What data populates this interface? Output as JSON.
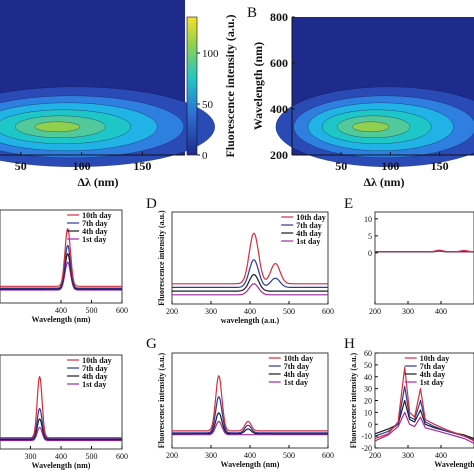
{
  "chart_data": [
    {
      "panel": "A",
      "panel_label": "",
      "type": "heatmap",
      "xlabel": "Δλ (nm)",
      "ylabel": "",
      "xlim": [
        0,
        185
      ],
      "x_ticks": [
        "50",
        "100",
        "150"
      ],
      "peak": {
        "x": 80,
        "y": 340
      },
      "colorbar": {
        "label": "Fluorescence intensity (a.u.)",
        "ticks": [
          "0",
          "50",
          "100"
        ],
        "range": [
          0,
          135
        ],
        "colors": [
          "#1e2a8c",
          "#2f6fd6",
          "#1fc6c8",
          "#8fd14f",
          "#f5e02a"
        ]
      }
    },
    {
      "panel": "B",
      "panel_label": "B",
      "type": "heatmap",
      "xlabel": "Δλ (nm)",
      "ylabel": "Wavelength (nm)",
      "xlim": [
        0,
        185
      ],
      "ylim": [
        200,
        800
      ],
      "x_ticks": [
        "50",
        "100",
        "150"
      ],
      "y_ticks": [
        "200",
        "400",
        "600",
        "800"
      ],
      "peak": {
        "x": 80,
        "y": 340
      }
    },
    {
      "panel": "C",
      "panel_label": "",
      "type": "line",
      "xlabel": "Wavelength (nm)",
      "ylabel": "",
      "xlim": [
        200,
        600
      ],
      "x_ticks": [
        "400",
        "500",
        "600"
      ],
      "legend": [
        "10th day",
        "7th day",
        "4th day",
        "1st day"
      ],
      "series": [
        {
          "name": "10th day",
          "color": "#d42e3e",
          "baseline": 0.18,
          "peaks": [
            {
              "x": 422,
              "h": 0.62,
              "w": 9
            }
          ]
        },
        {
          "name": "7th day",
          "color": "#2b3a9a",
          "baseline": 0.16,
          "peaks": [
            {
              "x": 422,
              "h": 0.46,
              "w": 9
            }
          ]
        },
        {
          "name": "4th day",
          "color": "#1c1c1c",
          "baseline": 0.15,
          "peaks": [
            {
              "x": 422,
              "h": 0.38,
              "w": 9
            }
          ]
        },
        {
          "name": "1st day",
          "color": "#a02aa8",
          "baseline": 0.14,
          "peaks": [
            {
              "x": 422,
              "h": 0.3,
              "w": 9
            }
          ]
        }
      ]
    },
    {
      "panel": "D",
      "panel_label": "D",
      "type": "line",
      "xlabel": "wavelength (a.u.)",
      "ylabel": "Fluorescence intensity (a.u.)",
      "xlim": [
        200,
        600
      ],
      "x_ticks": [
        "200",
        "300",
        "400",
        "500",
        "600"
      ],
      "legend": [
        "10th day",
        "7th day",
        "4th day",
        "1st day"
      ],
      "series": [
        {
          "name": "10th day",
          "color": "#d42e3e",
          "baseline": 0.22,
          "peaks": [
            {
              "x": 410,
              "h": 0.55,
              "w": 12
            },
            {
              "x": 465,
              "h": 0.22,
              "w": 12
            }
          ]
        },
        {
          "name": "7th day",
          "color": "#2b3a9a",
          "baseline": 0.18,
          "peaks": [
            {
              "x": 410,
              "h": 0.3,
              "w": 12
            },
            {
              "x": 465,
              "h": 0.1,
              "w": 12
            }
          ]
        },
        {
          "name": "4th day",
          "color": "#1c1c1c",
          "baseline": 0.14,
          "peaks": [
            {
              "x": 410,
              "h": 0.18,
              "w": 12
            }
          ]
        },
        {
          "name": "1st day",
          "color": "#a02aa8",
          "baseline": 0.1,
          "peaks": [
            {
              "x": 410,
              "h": 0.12,
              "w": 12
            }
          ]
        }
      ]
    },
    {
      "panel": "E",
      "panel_label": "E",
      "type": "line",
      "xlabel": "",
      "ylabel": "",
      "xlim": [
        200,
        500
      ],
      "x_ticks": [
        "200",
        "300",
        "400"
      ],
      "y_ticks": [
        "0",
        "5",
        "10"
      ],
      "ylim": [
        -15,
        12
      ],
      "series": [
        {
          "name": "10th day",
          "color": "#d42e3e",
          "baseline": 0.35,
          "peaks": [
            {
              "x": 395,
              "h": 0.45,
              "w": 10
            },
            {
              "x": 470,
              "h": 0.35,
              "w": 10
            }
          ]
        },
        {
          "name": "7th day",
          "color": "#2b3a9a",
          "baseline": 0.32,
          "peaks": [
            {
              "x": 395,
              "h": 0.38,
              "w": 10
            },
            {
              "x": 470,
              "h": 0.28,
              "w": 10
            }
          ]
        },
        {
          "name": "4th day",
          "color": "#1c1c1c",
          "baseline": 0.3,
          "peaks": [
            {
              "x": 395,
              "h": 0.3,
              "w": 10
            },
            {
              "x": 470,
              "h": 0.22,
              "w": 10
            }
          ]
        },
        {
          "name": "1st day",
          "color": "#a02aa8",
          "baseline": 0.28,
          "peaks": [
            {
              "x": 395,
              "h": 0.25,
              "w": 10
            }
          ]
        }
      ]
    },
    {
      "panel": "F",
      "panel_label": "",
      "type": "line",
      "xlabel": "Wavelength (nm)",
      "ylabel": "",
      "xlim": [
        200,
        600
      ],
      "x_ticks": [
        "300",
        "400",
        "500",
        "600"
      ],
      "legend": [
        "10th day",
        "7th day",
        "4th day",
        "1st day"
      ],
      "series": [
        {
          "name": "10th day",
          "color": "#d42e3e",
          "baseline": 0.12,
          "peaks": [
            {
              "x": 330,
              "h": 0.65,
              "w": 8
            }
          ]
        },
        {
          "name": "7th day",
          "color": "#2b3a9a",
          "baseline": 0.11,
          "peaks": [
            {
              "x": 330,
              "h": 0.32,
              "w": 8
            }
          ]
        },
        {
          "name": "4th day",
          "color": "#1c1c1c",
          "baseline": 0.1,
          "peaks": [
            {
              "x": 330,
              "h": 0.22,
              "w": 8
            }
          ]
        },
        {
          "name": "1st day",
          "color": "#a02aa8",
          "baseline": 0.09,
          "peaks": [
            {
              "x": 330,
              "h": 0.14,
              "w": 8
            }
          ]
        }
      ]
    },
    {
      "panel": "G",
      "panel_label": "G",
      "type": "line",
      "xlabel": "Wavelength (nm)",
      "ylabel": "Fluorescence intensity (a.u.)",
      "xlim": [
        200,
        600
      ],
      "x_ticks": [
        "200",
        "300",
        "400",
        "500",
        "600"
      ],
      "legend": [
        "10th day",
        "7th day",
        "4th day",
        "1st day"
      ],
      "series": [
        {
          "name": "10th day",
          "color": "#d42e3e",
          "baseline": 0.18,
          "peaks": [
            {
              "x": 320,
              "h": 0.58,
              "w": 8
            },
            {
              "x": 395,
              "h": 0.1,
              "w": 8
            }
          ]
        },
        {
          "name": "7th day",
          "color": "#2b3a9a",
          "baseline": 0.16,
          "peaks": [
            {
              "x": 320,
              "h": 0.38,
              "w": 8
            },
            {
              "x": 395,
              "h": 0.08,
              "w": 8
            }
          ]
        },
        {
          "name": "4th day",
          "color": "#1c1c1c",
          "baseline": 0.15,
          "peaks": [
            {
              "x": 320,
              "h": 0.22,
              "w": 8
            },
            {
              "x": 395,
              "h": 0.05,
              "w": 8
            }
          ]
        },
        {
          "name": "1st day",
          "color": "#a02aa8",
          "baseline": 0.14,
          "peaks": [
            {
              "x": 320,
              "h": 0.14,
              "w": 8
            }
          ]
        }
      ]
    },
    {
      "panel": "H",
      "panel_label": "H",
      "type": "line",
      "xlabel": "Wavelength",
      "ylabel": "Fluorescence intensity (a.u.)",
      "xlim": [
        200,
        500
      ],
      "x_ticks": [
        "200",
        "300",
        "400"
      ],
      "y_ticks": [
        "-20",
        "-10",
        "0",
        "10",
        "20",
        "30",
        "40",
        "50",
        "60"
      ],
      "ylim": [
        -20,
        60
      ],
      "legend": [
        "10th day",
        "7th day",
        "4th day",
        "1st day"
      ],
      "series": [
        {
          "name": "10th day",
          "color": "#d42e3e",
          "values": [
            [
              200,
              -12
            ],
            [
              240,
              -8
            ],
            [
              270,
              2
            ],
            [
              290,
              48
            ],
            [
              305,
              10
            ],
            [
              320,
              6
            ],
            [
              338,
              30
            ],
            [
              352,
              4
            ],
            [
              380,
              0
            ],
            [
              420,
              -5
            ],
            [
              470,
              -10
            ],
            [
              500,
              -14
            ]
          ]
        },
        {
          "name": "7th day",
          "color": "#2b3a9a",
          "values": [
            [
              200,
              -10
            ],
            [
              240,
              -6
            ],
            [
              270,
              0
            ],
            [
              290,
              32
            ],
            [
              305,
              6
            ],
            [
              320,
              4
            ],
            [
              338,
              20
            ],
            [
              352,
              2
            ],
            [
              380,
              -2
            ],
            [
              420,
              -6
            ],
            [
              470,
              -10
            ],
            [
              500,
              -13
            ]
          ]
        },
        {
          "name": "4th day",
          "color": "#1c1c1c",
          "values": [
            [
              200,
              -8
            ],
            [
              240,
              -4
            ],
            [
              270,
              0
            ],
            [
              290,
              20
            ],
            [
              305,
              4
            ],
            [
              320,
              2
            ],
            [
              338,
              12
            ],
            [
              352,
              0
            ],
            [
              380,
              -3
            ],
            [
              420,
              -6
            ],
            [
              470,
              -9
            ],
            [
              500,
              -12
            ]
          ]
        },
        {
          "name": "1st day",
          "color": "#a02aa8",
          "values": [
            [
              200,
              -14
            ],
            [
              240,
              -9
            ],
            [
              270,
              -2
            ],
            [
              290,
              10
            ],
            [
              305,
              0
            ],
            [
              320,
              -2
            ],
            [
              338,
              6
            ],
            [
              352,
              -3
            ],
            [
              380,
              -5
            ],
            [
              420,
              -8
            ],
            [
              470,
              -12
            ],
            [
              500,
              -16
            ]
          ]
        }
      ]
    }
  ]
}
